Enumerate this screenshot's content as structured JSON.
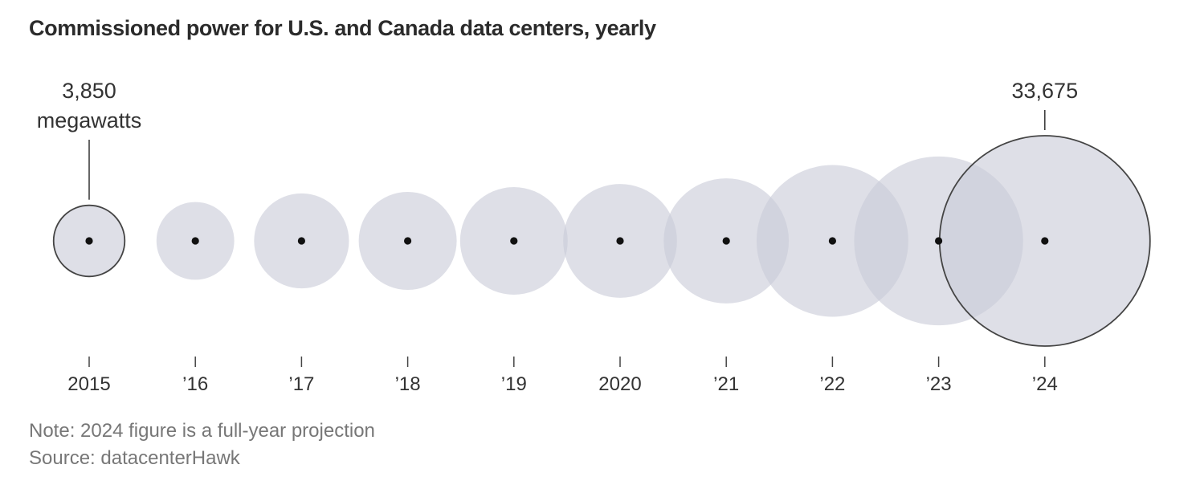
{
  "chart_data": {
    "type": "bubble",
    "title": "Commissioned power for U.S. and Canada data centers, yearly",
    "categories": [
      "2015",
      "’16",
      "’17",
      "’18",
      "’19",
      "2020",
      "’21",
      "’22",
      "’23",
      "’24"
    ],
    "series": [
      {
        "values": [
          3850,
          4600,
          6850,
          7300,
          8800,
          9850,
          11900,
          17500,
          21700,
          33675
        ]
      }
    ],
    "unit": "megawatts",
    "annotations": [
      {
        "category": "2015",
        "value_label": "3,850",
        "unit_label": "megawatts"
      },
      {
        "category": "’24",
        "value_label": "33,675"
      }
    ],
    "highlighted_categories": [
      "2015",
      "’24"
    ],
    "colors": {
      "bubble_fill": "#c9ccd8",
      "bubble_stroke": "#444444",
      "dot": "#111111",
      "axis_tick": "#444444"
    }
  },
  "footer": {
    "note": "Note: 2024 figure is a full-year projection",
    "source": "Source: datacenterHawk"
  }
}
